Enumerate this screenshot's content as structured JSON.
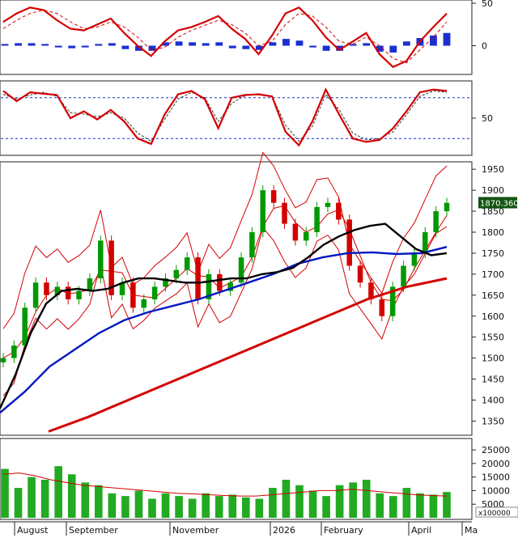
{
  "chart_data": [
    {
      "type": "line",
      "panel": "oscillator-macd",
      "ylim": [
        -30,
        50
      ],
      "y_ticks": [
        50,
        0
      ],
      "series": [
        {
          "values": [
            28,
            38,
            45,
            42,
            30,
            20,
            18,
            25,
            32,
            15,
            0,
            -12,
            5,
            18,
            22,
            28,
            35,
            20,
            8,
            -10,
            12,
            38,
            45,
            30,
            10,
            -5,
            5,
            15,
            -10,
            -25,
            -18,
            5,
            22,
            38
          ]
        },
        {
          "values": [
            20,
            30,
            38,
            42,
            38,
            28,
            20,
            22,
            28,
            22,
            10,
            -5,
            -2,
            10,
            18,
            24,
            30,
            25,
            15,
            0,
            5,
            25,
            38,
            35,
            22,
            5,
            2,
            10,
            0,
            -15,
            -20,
            -5,
            10,
            28
          ]
        }
      ],
      "histogram": [
        2,
        3,
        3,
        2,
        -2,
        -3,
        -2,
        2,
        3,
        -4,
        -6,
        -6,
        4,
        5,
        4,
        3,
        4,
        -3,
        -4,
        -5,
        4,
        8,
        6,
        -2,
        -6,
        -6,
        2,
        3,
        -7,
        -8,
        5,
        9,
        12,
        15
      ]
    },
    {
      "type": "line",
      "panel": "oscillator-stochastic",
      "ylim": [
        0,
        100
      ],
      "y_ticks": [
        50
      ],
      "reference_lines": [
        80,
        20
      ],
      "series": [
        {
          "values": [
            90,
            75,
            88,
            86,
            84,
            50,
            60,
            48,
            62,
            45,
            20,
            12,
            55,
            85,
            90,
            78,
            35,
            80,
            84,
            85,
            82,
            30,
            10,
            45,
            92,
            55,
            20,
            15,
            18,
            35,
            60,
            88,
            92,
            90
          ]
        },
        {
          "values": [
            85,
            78,
            84,
            88,
            82,
            58,
            56,
            52,
            58,
            50,
            28,
            16,
            48,
            78,
            88,
            80,
            45,
            72,
            83,
            86,
            82,
            40,
            16,
            38,
            85,
            62,
            28,
            18,
            20,
            30,
            55,
            82,
            90,
            88
          ]
        }
      ]
    },
    {
      "type": "line",
      "panel": "price",
      "ylim": [
        1320,
        1960
      ],
      "y_ticks": [
        1950,
        1900,
        1850,
        1800,
        1750,
        1700,
        1650,
        1600,
        1550,
        1500,
        1450,
        1400,
        1350
      ],
      "last_price_label": "1870.360",
      "last_price": 1870.36,
      "series": [
        {
          "name": "close",
          "color": "#d40000",
          "values": [
            1500,
            1530,
            1620,
            1680,
            1650,
            1670,
            1640,
            1660,
            1690,
            1780,
            1650,
            1680,
            1620,
            1640,
            1670,
            1690,
            1710,
            1740,
            1640,
            1700,
            1660,
            1680,
            1740,
            1800,
            1900,
            1870,
            1820,
            1780,
            1800,
            1860,
            1870,
            1830,
            1720,
            1680,
            1640,
            1600,
            1670,
            1720,
            1750,
            1800,
            1850,
            1870
          ]
        },
        {
          "name": "ma-short",
          "color": "#000000",
          "values": [
            1380,
            1460,
            1560,
            1630,
            1660,
            1665,
            1660,
            1665,
            1680,
            1690,
            1690,
            1685,
            1680,
            1680,
            1685,
            1690,
            1690,
            1700,
            1705,
            1715,
            1740,
            1770,
            1790,
            1805,
            1815,
            1820,
            1790,
            1760,
            1745,
            1750
          ]
        },
        {
          "name": "ma-long",
          "color": "#0018c0",
          "values": [
            1370,
            1420,
            1480,
            1520,
            1560,
            1590,
            1610,
            1625,
            1640,
            1660,
            1680,
            1700,
            1725,
            1740,
            1750,
            1752,
            1748,
            1750,
            1765
          ]
        },
        {
          "name": "ma-200",
          "color": "#d40000",
          "values": [
            1325,
            1360,
            1400,
            1440,
            1480,
            1520,
            1560,
            1600,
            1640,
            1670,
            1690
          ]
        }
      ]
    },
    {
      "type": "bar",
      "panel": "volume",
      "ylim": [
        0,
        28000
      ],
      "y_ticks": [
        25000,
        20000,
        15000,
        10000,
        5000
      ],
      "unit_label": "x100000",
      "values": [
        18000,
        11000,
        15000,
        14000,
        19000,
        16000,
        13000,
        12000,
        9000,
        8000,
        10000,
        7000,
        9000,
        8000,
        7000,
        9000,
        8000,
        8500,
        7500,
        7000,
        11000,
        14000,
        12000,
        10000,
        8000,
        12000,
        13000,
        14000,
        9000,
        8000,
        11000,
        9000,
        8500,
        9500
      ],
      "ma_line": [
        16000,
        16500,
        15500,
        14000,
        13000,
        12000,
        11500,
        11000,
        10500,
        10000,
        9500,
        9000,
        8800,
        8500,
        8200,
        8000,
        8000,
        8500,
        9000,
        9500,
        10000,
        10000,
        10500,
        10000,
        9500,
        9000,
        8500,
        8200,
        8000
      ]
    }
  ],
  "x_axis": {
    "labels": [
      "August",
      "September",
      "November",
      "2026",
      "February",
      "April",
      "Ma"
    ]
  },
  "colors": {
    "candle_up": "#009900",
    "candle_down": "#d40000",
    "volume_bar": "#22aa22",
    "macd_hist": "#1a2fd0",
    "stoch_ref": "#1a2fd0",
    "bands": "#d40000",
    "last_price_box": "#115511",
    "last_price_text": "#ffffff"
  }
}
